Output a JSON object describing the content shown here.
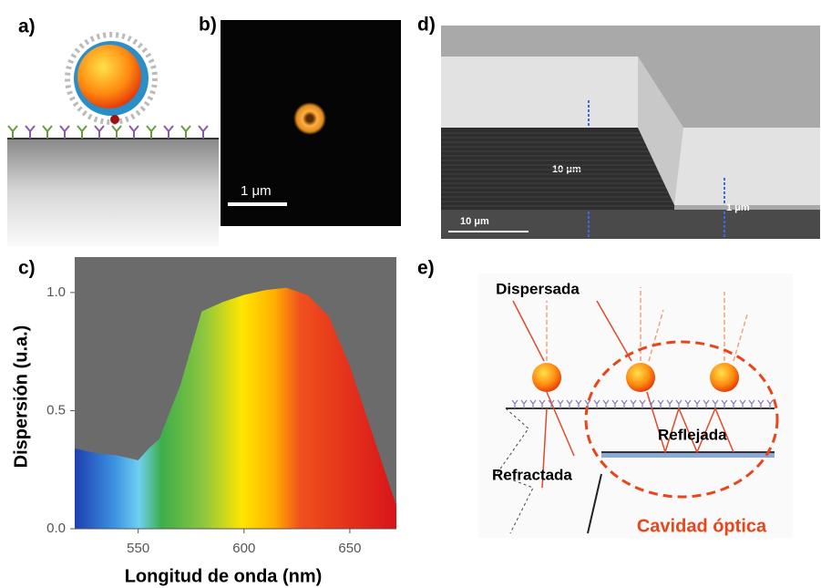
{
  "panel_labels": [
    "a)",
    "b)",
    "c)",
    "d)",
    "e)"
  ],
  "panel_b": {
    "scale_bar": "1 μm"
  },
  "panel_d": {
    "layer_label": "10 μm",
    "scale_bar": "10 μm",
    "gap_label": "1 μm"
  },
  "panel_e": {
    "scattered": "Dispersada",
    "reflected": "Reflejada",
    "refracted": "Refractada",
    "cavity": "Cavidad óptica"
  },
  "chart_data": {
    "type": "area",
    "x_label": "Longitud de onda (nm)",
    "y_label": "Dispersión (u.a.)",
    "x": [
      520,
      530,
      540,
      550,
      555,
      560,
      570,
      580,
      590,
      600,
      610,
      620,
      630,
      640,
      650,
      660,
      670,
      672
    ],
    "values": [
      0.34,
      0.32,
      0.31,
      0.29,
      0.34,
      0.38,
      0.61,
      0.92,
      0.96,
      0.99,
      1.01,
      1.02,
      0.99,
      0.9,
      0.69,
      0.42,
      0.15,
      0.1
    ],
    "xlim": [
      520,
      672
    ],
    "ylim": [
      0,
      1.15
    ],
    "xticks": [
      550,
      600,
      650
    ],
    "yticks": [
      {
        "value": 0,
        "label": "0.0"
      },
      {
        "value": 0.5,
        "label": "0.5"
      },
      {
        "value": 1,
        "label": "1.0"
      }
    ],
    "background": "#6b6b6b"
  }
}
